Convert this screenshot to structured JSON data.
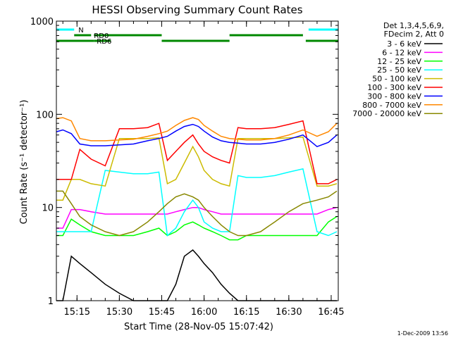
{
  "chart_data": {
    "type": "line",
    "title": "HESSI Observing Summary Count Rates",
    "xlabel": "Start Time (28-Nov-05 15:07:42)",
    "ylabel": "Count Rate (s⁻¹ detector⁻¹)",
    "y_scale": "log",
    "ylim": [
      1,
      1000
    ],
    "xlim": [
      "15:07:42",
      "16:47:30"
    ],
    "x_ticks": [
      "15:15",
      "15:30",
      "15:45",
      "16:00",
      "16:15",
      "16:30",
      "16:45"
    ],
    "y_ticks": [
      "1",
      "10",
      "100",
      "1000"
    ],
    "footer": "1-Dec-2009 13:56",
    "legend_header": [
      "Det 1,3,4,5,6,9,",
      "FDecim 2, Att 0"
    ],
    "legend_placement": "right",
    "series": [
      {
        "name": "3 - 6 keV",
        "color": "#000000",
        "x": [
          "15:07:42",
          "15:10",
          "15:13",
          "15:16",
          "15:20",
          "15:25",
          "15:30",
          "15:35",
          "15:40",
          "15:44",
          "15:47",
          "15:50",
          "15:53",
          "15:56",
          "15:58",
          "16:00",
          "16:03",
          "16:06",
          "16:09",
          "16:12",
          "16:15",
          "16:20",
          "16:25",
          "16:30",
          "16:35",
          "16:40",
          "16:44",
          "16:47"
        ],
        "y": [
          1,
          1,
          3,
          2.5,
          2,
          1.5,
          1.2,
          1,
          1,
          1,
          1,
          1.5,
          3,
          3.5,
          3,
          2.5,
          2,
          1.5,
          1.2,
          1,
          1,
          1,
          1,
          1,
          1,
          1,
          1,
          1
        ]
      },
      {
        "name": "6 - 12 keV",
        "color": "#ff00ff",
        "x": [
          "15:07:42",
          "15:10",
          "15:13",
          "15:16",
          "15:20",
          "15:25",
          "15:30",
          "15:35",
          "15:40",
          "15:44",
          "15:47",
          "15:50",
          "15:53",
          "15:56",
          "15:58",
          "16:00",
          "16:03",
          "16:06",
          "16:09",
          "16:12",
          "16:15",
          "16:20",
          "16:25",
          "16:30",
          "16:35",
          "16:40",
          "16:44",
          "16:47"
        ],
        "y": [
          6,
          6,
          9.5,
          9.5,
          9,
          8.5,
          8.5,
          8.5,
          8.5,
          8.5,
          8.5,
          9,
          9.5,
          10,
          10,
          9.5,
          9,
          8.5,
          8.5,
          8.5,
          8.5,
          8.5,
          8.5,
          8.5,
          8.5,
          8.5,
          9.5,
          10
        ]
      },
      {
        "name": "12 - 25 keV",
        "color": "#00ff00",
        "x": [
          "15:07:42",
          "15:10",
          "15:13",
          "15:16",
          "15:20",
          "15:25",
          "15:30",
          "15:35",
          "15:40",
          "15:44",
          "15:47",
          "15:50",
          "15:53",
          "15:56",
          "15:58",
          "16:00",
          "16:03",
          "16:06",
          "16:09",
          "16:12",
          "16:15",
          "16:20",
          "16:25",
          "16:30",
          "16:35",
          "16:40",
          "16:44",
          "16:47"
        ],
        "y": [
          5,
          5,
          7.5,
          6.5,
          5.5,
          5,
          5,
          5,
          5.5,
          6,
          5,
          5.5,
          6.5,
          7,
          6.5,
          6,
          5.5,
          5,
          4.5,
          4.5,
          5,
          5,
          5,
          5,
          5,
          5,
          7,
          8
        ]
      },
      {
        "name": "25 - 50 keV",
        "color": "#00ffff",
        "x": [
          "15:07:42",
          "15:10",
          "15:13",
          "15:16",
          "15:20",
          "15:25",
          "15:30",
          "15:35",
          "15:40",
          "15:44",
          "15:47",
          "15:50",
          "15:53",
          "15:56",
          "15:58",
          "16:00",
          "16:03",
          "16:06",
          "16:09",
          "16:12",
          "16:15",
          "16:20",
          "16:25",
          "16:30",
          "16:35",
          "16:40",
          "16:44",
          "16:47"
        ],
        "y": [
          5.5,
          5.5,
          5.5,
          5.5,
          5.5,
          25,
          24,
          23,
          23,
          24,
          5,
          6,
          9,
          12,
          10,
          7,
          6,
          5.5,
          5.5,
          22,
          21,
          21,
          22,
          24,
          26,
          5.5,
          5,
          5.5
        ]
      },
      {
        "name": "50 - 100 keV",
        "color": "#ccbb00",
        "x": [
          "15:07:42",
          "15:10",
          "15:13",
          "15:16",
          "15:20",
          "15:25",
          "15:30",
          "15:35",
          "15:40",
          "15:44",
          "15:47",
          "15:50",
          "15:53",
          "15:56",
          "15:58",
          "16:00",
          "16:03",
          "16:06",
          "16:09",
          "16:12",
          "16:15",
          "16:20",
          "16:25",
          "16:30",
          "16:35",
          "16:40",
          "16:44",
          "16:47"
        ],
        "y": [
          12,
          12,
          20,
          20,
          18,
          17,
          55,
          55,
          55,
          56,
          18,
          20,
          30,
          45,
          35,
          25,
          20,
          18,
          17,
          55,
          55,
          55,
          55,
          56,
          57,
          17,
          17,
          18
        ]
      },
      {
        "name": "100 - 300 keV",
        "color": "#ff0000",
        "x": [
          "15:07:42",
          "15:10",
          "15:13",
          "15:16",
          "15:20",
          "15:25",
          "15:30",
          "15:35",
          "15:40",
          "15:44",
          "15:47",
          "15:50",
          "15:53",
          "15:56",
          "15:58",
          "16:00",
          "16:03",
          "16:06",
          "16:09",
          "16:12",
          "16:15",
          "16:20",
          "16:25",
          "16:30",
          "16:35",
          "16:40",
          "16:44",
          "16:47"
        ],
        "y": [
          20,
          20,
          20,
          42,
          33,
          28,
          70,
          70,
          72,
          80,
          32,
          40,
          50,
          60,
          48,
          40,
          35,
          32,
          30,
          72,
          70,
          70,
          72,
          78,
          85,
          18,
          18,
          20
        ]
      },
      {
        "name": "300 - 800 keV",
        "color": "#0000ff",
        "x": [
          "15:07:42",
          "15:10",
          "15:13",
          "15:16",
          "15:20",
          "15:25",
          "15:30",
          "15:35",
          "15:40",
          "15:44",
          "15:47",
          "15:50",
          "15:53",
          "15:56",
          "15:58",
          "16:00",
          "16:03",
          "16:06",
          "16:09",
          "16:12",
          "16:15",
          "16:20",
          "16:25",
          "16:30",
          "16:35",
          "16:40",
          "16:44",
          "16:47"
        ],
        "y": [
          65,
          68,
          62,
          48,
          46,
          46,
          47,
          48,
          52,
          55,
          58,
          66,
          74,
          78,
          74,
          66,
          57,
          52,
          50,
          49,
          48,
          48,
          50,
          54,
          60,
          45,
          50,
          60
        ]
      },
      {
        "name": "800 - 7000 keV",
        "color": "#ff8800",
        "x": [
          "15:07:42",
          "15:10",
          "15:13",
          "15:16",
          "15:20",
          "15:25",
          "15:30",
          "15:35",
          "15:40",
          "15:44",
          "15:47",
          "15:50",
          "15:53",
          "15:56",
          "15:58",
          "16:00",
          "16:03",
          "16:06",
          "16:09",
          "16:12",
          "16:15",
          "16:20",
          "16:25",
          "16:30",
          "16:35",
          "16:40",
          "16:44",
          "16:47"
        ],
        "y": [
          90,
          92,
          85,
          55,
          52,
          52,
          53,
          54,
          58,
          62,
          66,
          76,
          86,
          92,
          88,
          76,
          66,
          58,
          55,
          54,
          53,
          53,
          55,
          60,
          68,
          58,
          65,
          80
        ]
      },
      {
        "name": "7000 - 20000 keV",
        "color": "#888800",
        "x": [
          "15:07:42",
          "15:10",
          "15:13",
          "15:16",
          "15:20",
          "15:25",
          "15:30",
          "15:35",
          "15:40",
          "15:44",
          "15:47",
          "15:50",
          "15:53",
          "15:56",
          "15:58",
          "16:00",
          "16:03",
          "16:06",
          "16:09",
          "16:12",
          "16:15",
          "16:20",
          "16:25",
          "16:30",
          "16:35",
          "16:40",
          "16:44",
          "16:47"
        ],
        "y": [
          15,
          15,
          11,
          8,
          6.5,
          5.5,
          5,
          5.5,
          7,
          9,
          11,
          13,
          14,
          13,
          12,
          10,
          8,
          6.5,
          5.5,
          5,
          5,
          5.5,
          7,
          9,
          11,
          12,
          13,
          15
        ]
      }
    ],
    "state_bars": [
      {
        "name": "N",
        "color": "#00ffff",
        "segments": [
          [
            "15:07:42",
            "15:14"
          ],
          [
            "16:37",
            "16:47:30"
          ]
        ]
      },
      {
        "name": "RD0",
        "color": "#008800",
        "segments": [
          [
            "15:14",
            "15:20"
          ],
          [
            "15:21",
            "15:45"
          ],
          [
            "16:09",
            "16:35"
          ]
        ]
      },
      {
        "name": "RD6",
        "color": "#008800",
        "segments": [
          [
            "15:07:42",
            "15:21"
          ],
          [
            "15:21",
            "15:27"
          ],
          [
            "15:45",
            "16:09"
          ],
          [
            "16:36",
            "16:47:30"
          ]
        ]
      }
    ]
  }
}
